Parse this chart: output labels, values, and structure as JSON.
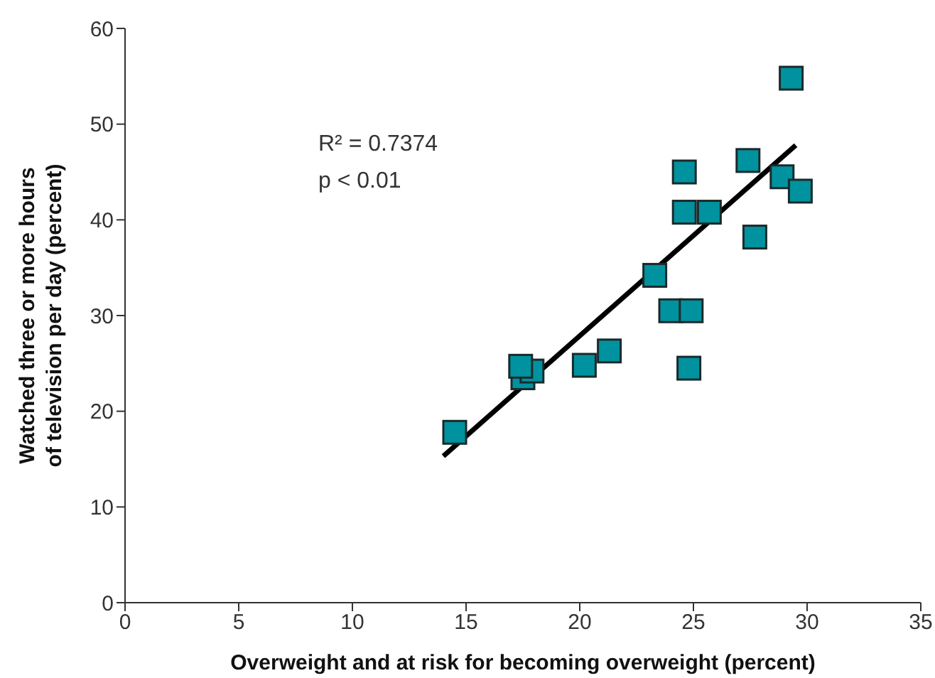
{
  "chart_data": {
    "type": "scatter",
    "xlabel": "Overweight and at risk for becoming overweight (percent)",
    "ylabel": "Watched three or more hours of television per day (percent)",
    "annotations": [
      "R² = 0.7374",
      "p < 0.01"
    ],
    "xlim": [
      0,
      35
    ],
    "xticks": [
      0,
      5,
      10,
      15,
      20,
      25,
      30,
      35
    ],
    "ylim": [
      0,
      60
    ],
    "yticks": [
      0,
      10,
      20,
      30,
      40,
      50,
      60
    ],
    "grid": false,
    "legend": false,
    "series": [
      {
        "marker": "square",
        "color": "#00929f",
        "x": [
          14.5,
          17.5,
          17.9,
          20.2,
          21.3,
          23.3,
          24.0,
          24.9,
          24.8,
          24.6,
          24.6,
          25.7,
          27.4,
          27.7,
          28.9,
          29.7,
          29.3,
          17.4
        ],
        "values": [
          17.8,
          23.5,
          24.2,
          24.8,
          26.3,
          34.2,
          30.5,
          30.5,
          24.5,
          45,
          40.8,
          40.8,
          46.2,
          38.2,
          44.5,
          43,
          54.8,
          24.7
        ]
      },
      {
        "type": "line",
        "color": "#000000",
        "x": [
          14.0,
          29.5
        ],
        "values": [
          15.3,
          47.8
        ]
      }
    ]
  }
}
